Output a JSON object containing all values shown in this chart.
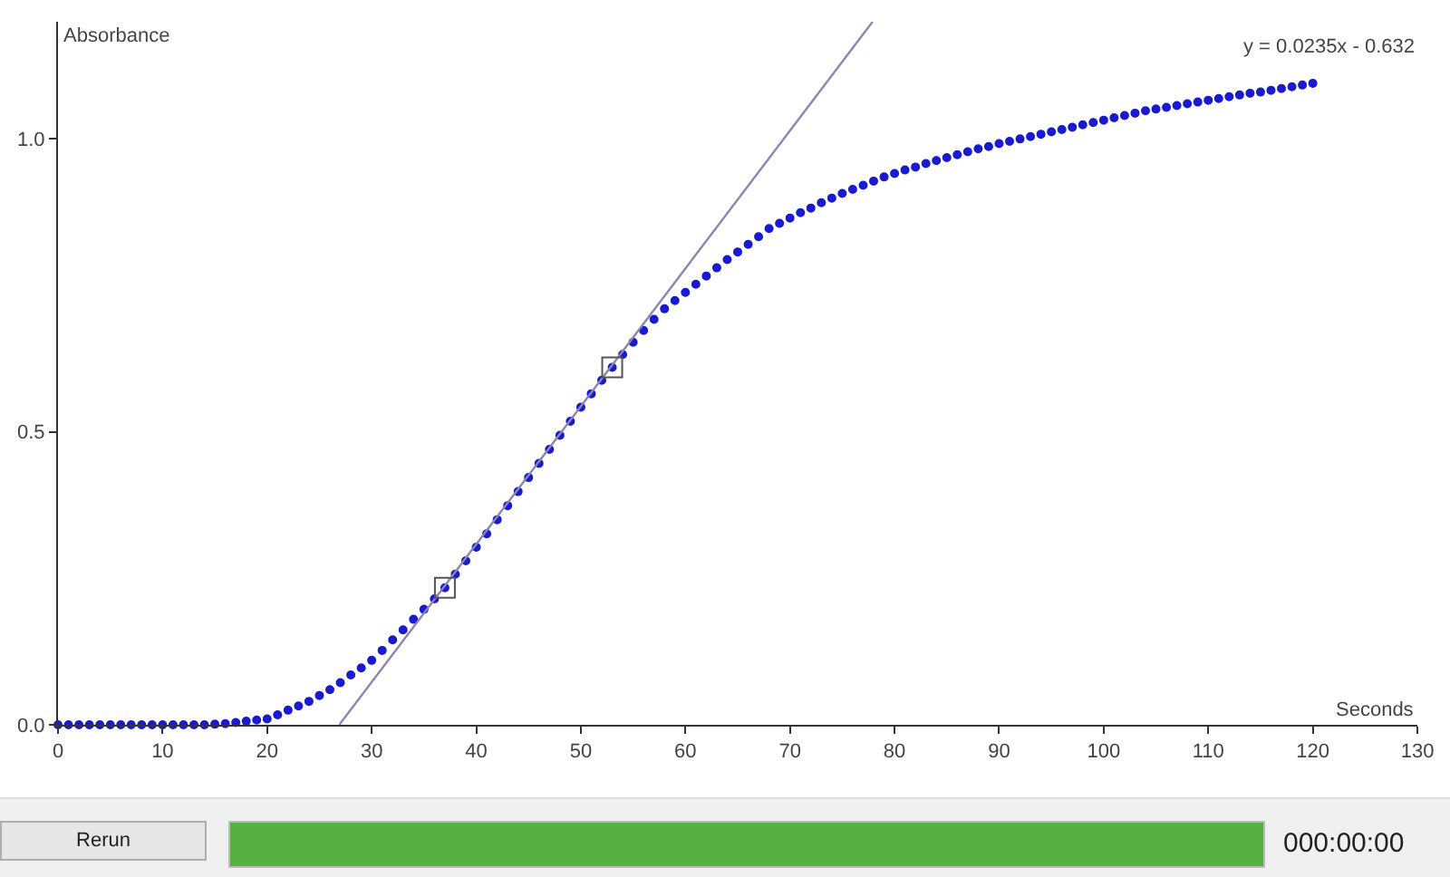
{
  "chart_data": {
    "type": "scatter",
    "xlabel": "Seconds",
    "ylabel": "Absorbance",
    "annotations": [
      "y = 0.0235x - 0.632",
      "Rerun",
      "000:00:00"
    ],
    "xlim": [
      0,
      130
    ],
    "xticks": [
      0,
      10,
      20,
      30,
      40,
      50,
      60,
      70,
      80,
      90,
      100,
      110,
      120,
      130
    ],
    "ylim": [
      0,
      1.2
    ],
    "yticks": [
      {
        "value": 0,
        "label": "0.0"
      },
      0.5,
      {
        "value": 1,
        "label": "1.0"
      }
    ],
    "grid": false,
    "legend": false,
    "series": [
      {
        "marker": "circle",
        "color": "#1a1ad0",
        "x": [
          0,
          1,
          2,
          3,
          4,
          5,
          6,
          7,
          8,
          9,
          10,
          11,
          12,
          13,
          14,
          15,
          16,
          17,
          18,
          19,
          20,
          21,
          22,
          23,
          24,
          25,
          26,
          27,
          28,
          29,
          30,
          31,
          32,
          33,
          34,
          35,
          36,
          37,
          38,
          39,
          40,
          41,
          42,
          43,
          44,
          45,
          46,
          47,
          48,
          49,
          50,
          51,
          52,
          53,
          54,
          55,
          56,
          57,
          58,
          59,
          60,
          61,
          62,
          63,
          64,
          65,
          66,
          67,
          68,
          69,
          70,
          71,
          72,
          73,
          74,
          75,
          76,
          77,
          78,
          79,
          80,
          81,
          82,
          83,
          84,
          85,
          86,
          87,
          88,
          89,
          90,
          91,
          92,
          93,
          94,
          95,
          96,
          97,
          98,
          99,
          100,
          101,
          102,
          103,
          104,
          105,
          106,
          107,
          108,
          109,
          110,
          111,
          112,
          113,
          114,
          115,
          116,
          117,
          118,
          119,
          120
        ],
        "values": [
          0,
          0,
          0,
          0,
          0,
          0,
          0,
          0,
          0,
          0,
          0,
          0,
          0,
          0,
          0,
          0.001,
          0.002,
          0.004,
          0.006,
          0.008,
          0.01,
          0.017,
          0.025,
          0.032,
          0.04,
          0.05,
          0.06,
          0.072,
          0.085,
          0.097,
          0.11,
          0.127,
          0.145,
          0.162,
          0.18,
          0.197,
          0.215,
          0.234,
          0.257,
          0.28,
          0.303,
          0.326,
          0.35,
          0.374,
          0.398,
          0.422,
          0.446,
          0.47,
          0.494,
          0.518,
          0.542,
          0.565,
          0.588,
          0.61,
          0.632,
          0.653,
          0.673,
          0.692,
          0.71,
          0.724,
          0.738,
          0.752,
          0.766,
          0.78,
          0.794,
          0.807,
          0.82,
          0.833,
          0.847,
          0.856,
          0.865,
          0.874,
          0.882,
          0.891,
          0.899,
          0.907,
          0.914,
          0.921,
          0.928,
          0.935,
          0.941,
          0.947,
          0.952,
          0.958,
          0.963,
          0.968,
          0.973,
          0.978,
          0.983,
          0.987,
          0.992,
          0.996,
          1.0,
          1.004,
          1.008,
          1.012,
          1.016,
          1.02,
          1.024,
          1.028,
          1.032,
          1.036,
          1.04,
          1.044,
          1.048,
          1.051,
          1.054,
          1.057,
          1.06,
          1.063,
          1.066,
          1.069,
          1.072,
          1.075,
          1.078,
          1.08,
          1.083,
          1.086,
          1.089,
          1.092,
          1.095
        ]
      },
      {
        "type": "line",
        "color": "#8a86b0",
        "line_style": "solid",
        "x": [
          26.9,
          77.9
        ],
        "values": [
          0,
          1.2
        ]
      },
      {
        "type": "scatter",
        "marker": "square",
        "color": "#555555",
        "x": [
          37,
          53
        ],
        "values": [
          0.234,
          0.61
        ]
      }
    ]
  }
}
